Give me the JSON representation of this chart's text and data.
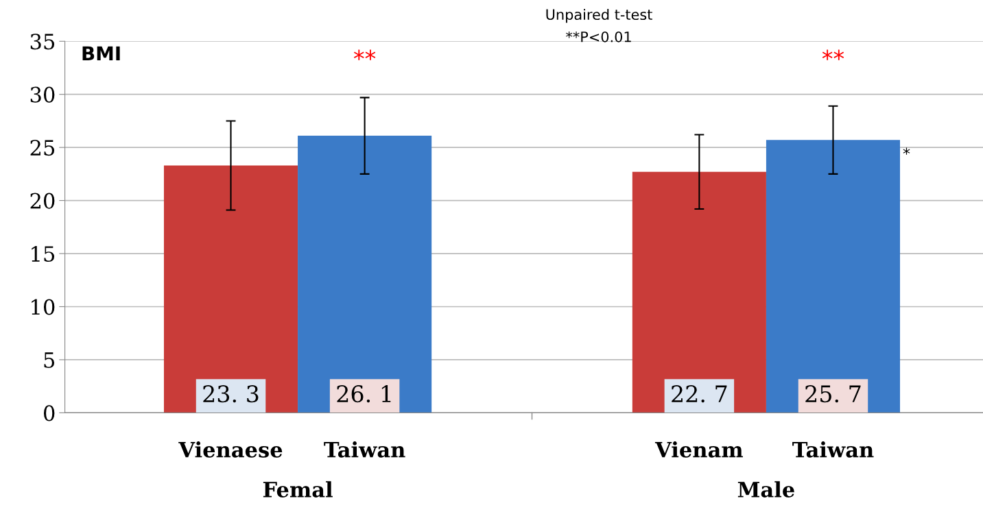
{
  "chart_data": {
    "type": "bar",
    "ylabel": "BMI",
    "categories": [
      "Vienaese",
      "Taiwan",
      "Vienam",
      "Taiwan"
    ],
    "values": [
      23.3,
      26.1,
      22.7,
      25.7
    ],
    "colors": [
      "#c93c39",
      "#3b7bc8",
      "#c93c39",
      "#3b7bc8"
    ],
    "errors": [
      [
        19.1,
        27.5
      ],
      [
        22.5,
        29.7
      ],
      [
        19.2,
        26.2
      ],
      [
        22.5,
        28.9
      ]
    ],
    "data_labels": true,
    "ylim": [
      0,
      35
    ],
    "yticks": [
      0,
      5,
      10,
      15,
      20,
      25,
      30,
      35
    ],
    "grid": "y",
    "annotations": [
      "Femal",
      "Male",
      "**",
      "**",
      "*",
      "Unpaired t-test",
      "**P<0.01"
    ]
  }
}
